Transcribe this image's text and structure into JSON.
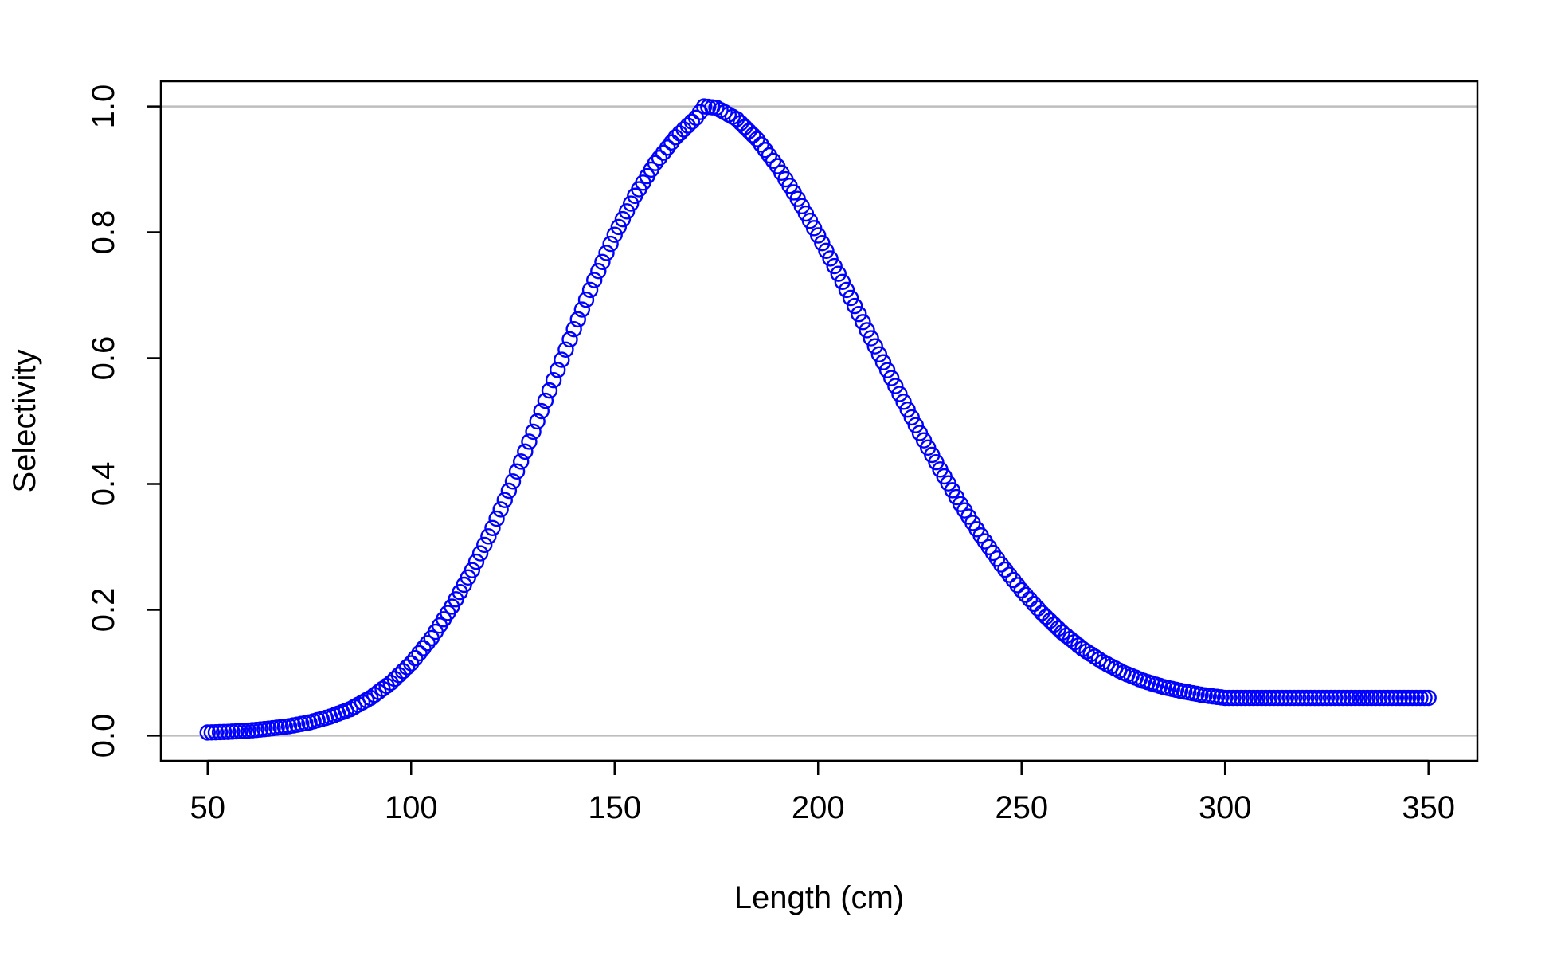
{
  "chart_data": {
    "type": "scatter",
    "xlabel": "Length (cm)",
    "ylabel": "Selectivity",
    "xlim": [
      38.5,
      362
    ],
    "ylim": [
      -0.04,
      1.04
    ],
    "xticks": [
      50,
      100,
      150,
      200,
      250,
      300,
      350
    ],
    "xtick_labels": [
      "50",
      "100",
      "150",
      "200",
      "250",
      "300",
      "350"
    ],
    "yticks": [
      0.0,
      0.2,
      0.4,
      0.6,
      0.8,
      1.0
    ],
    "ytick_labels": [
      "0.0",
      "0.2",
      "0.4",
      "0.6",
      "0.8",
      "1.0"
    ],
    "reference_lines": [
      0,
      1
    ],
    "reference_line_color": "#bebebe",
    "marker": "open-circle",
    "marker_color": "#0000ff",
    "grid": false,
    "series": [
      {
        "x": [
          50,
          55,
          60,
          65,
          70,
          75,
          80,
          85,
          90,
          95,
          100,
          105,
          110,
          115,
          120,
          125,
          130,
          135,
          140,
          145,
          150,
          155,
          160,
          165,
          170,
          172,
          175,
          180,
          185,
          190,
          195,
          200,
          205,
          210,
          215,
          220,
          225,
          230,
          235,
          240,
          245,
          250,
          255,
          260,
          265,
          270,
          275,
          280,
          285,
          290,
          295,
          300,
          305,
          310,
          315,
          320,
          325,
          330,
          335,
          340,
          345,
          350
        ],
        "y": [
          0.005,
          0.006,
          0.008,
          0.011,
          0.015,
          0.021,
          0.03,
          0.042,
          0.06,
          0.084,
          0.115,
          0.155,
          0.205,
          0.263,
          0.33,
          0.404,
          0.483,
          0.565,
          0.646,
          0.724,
          0.796,
          0.858,
          0.91,
          0.951,
          0.982,
          1.0,
          0.998,
          0.98,
          0.948,
          0.905,
          0.853,
          0.795,
          0.734,
          0.67,
          0.606,
          0.543,
          0.481,
          0.423,
          0.368,
          0.318,
          0.272,
          0.231,
          0.195,
          0.164,
          0.138,
          0.117,
          0.1,
          0.087,
          0.077,
          0.07,
          0.064,
          0.06,
          0.06,
          0.06,
          0.06,
          0.06,
          0.06,
          0.06,
          0.06,
          0.06,
          0.06,
          0.06
        ]
      }
    ]
  }
}
